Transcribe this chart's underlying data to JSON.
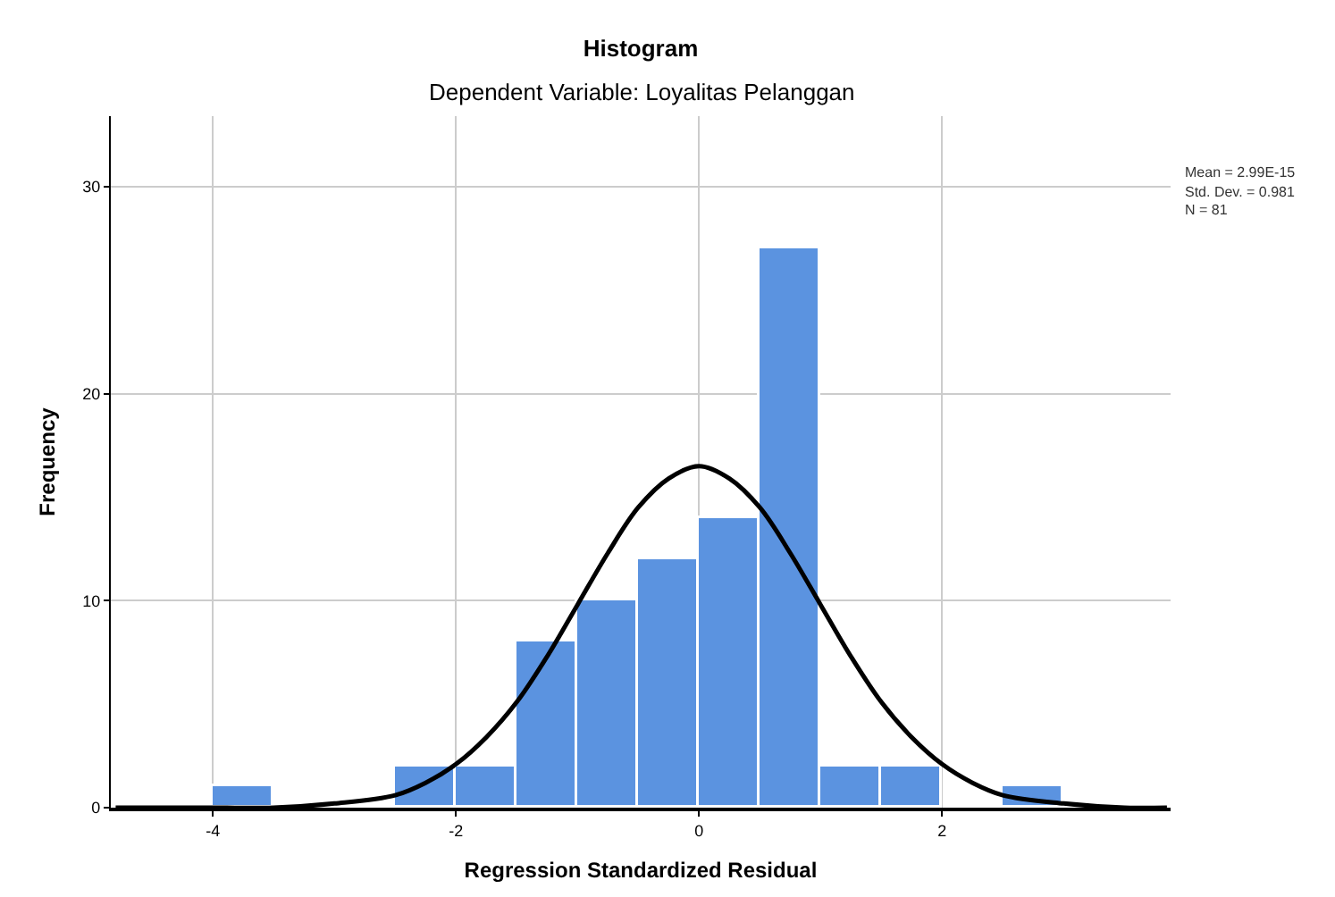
{
  "chart_data": {
    "type": "histogram",
    "title": "Histogram",
    "subtitle": "Dependent Variable: Loyalitas Pelanggan",
    "xlabel": "Regression Standardized Residual",
    "ylabel": "Frequency",
    "bins": [
      -4,
      -3.5,
      -3,
      -2.5,
      -2,
      -1.5,
      -1,
      -0.5,
      0,
      0.5,
      1,
      1.5,
      2,
      2.5,
      3
    ],
    "values": [
      1,
      0,
      0,
      2,
      2,
      8,
      10,
      12,
      14,
      27,
      2,
      2,
      0,
      1
    ],
    "color": "#5b93e0",
    "series": [
      {
        "type": "line",
        "color": "#000000",
        "x": [
          -4.8,
          -4,
          -3.5,
          -3,
          -2.5,
          -2.25,
          -2,
          -1.75,
          -1.5,
          -1.25,
          -1,
          -0.75,
          -0.5,
          -0.25,
          0,
          0.25,
          0.5,
          0.75,
          1,
          1.25,
          1.5,
          1.75,
          2,
          2.25,
          2.5,
          3,
          3.5,
          3.85
        ],
        "values": [
          0,
          0,
          0,
          0.2,
          0.6,
          1.2,
          2.1,
          3.4,
          5.1,
          7.3,
          9.8,
          12.3,
          14.5,
          15.9,
          16.5,
          15.9,
          14.5,
          12.3,
          9.8,
          7.3,
          5.1,
          3.4,
          2.1,
          1.2,
          0.6,
          0.2,
          0,
          0
        ]
      }
    ],
    "xlim": [
      -4.84,
      3.88
    ],
    "xticks": [
      -4,
      -2,
      0,
      2
    ],
    "ylim": [
      0,
      33.4
    ],
    "yticks": [
      0,
      10,
      20,
      30
    ],
    "grid": true,
    "annotations": [
      "Mean = 2.99E-15",
      "Std. Dev. = 0.981",
      "N = 81"
    ]
  }
}
